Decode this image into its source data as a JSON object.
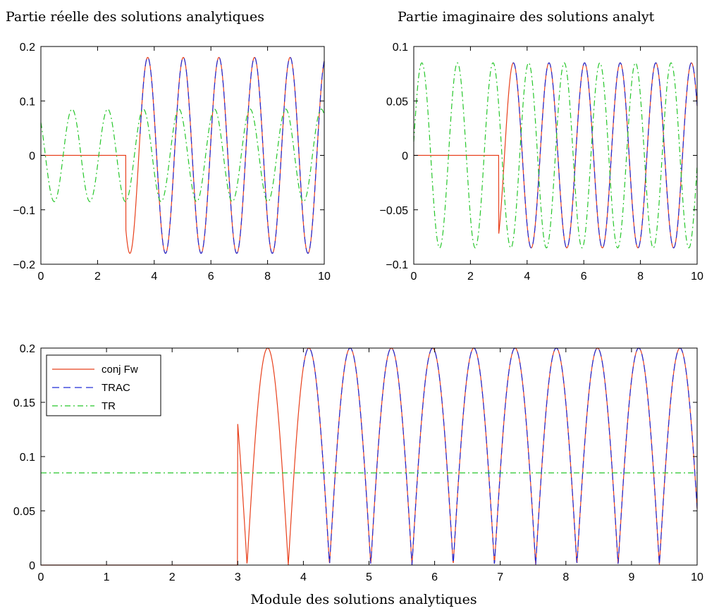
{
  "chart_data": [
    {
      "type": "line",
      "title": "Partie réelle des solutions analytiques",
      "xlabel": "",
      "ylabel": "",
      "xlim": [
        0,
        10
      ],
      "ylim": [
        -0.2,
        0.2
      ],
      "xticks": [
        "0",
        "2",
        "4",
        "6",
        "8",
        "10"
      ],
      "yticks": [
        "−0.2",
        "−0.1",
        "0",
        "0.1",
        "0.2"
      ],
      "grid": false,
      "series": [
        {
          "name": "conj Fw",
          "style": "solid",
          "color": "#e8401c",
          "shape": "zero until x=3, then sinusoid amplitude 0.18 period 1.257 phase pi/2",
          "x": [
            0,
            3,
            3.3,
            3.6,
            3.93,
            4.24,
            4.56,
            4.87,
            5.19,
            5.5,
            5.81,
            6.13,
            6.44,
            6.76,
            7.07,
            7.38,
            7.7,
            8.01,
            8.33,
            8.64,
            8.95,
            9.27,
            9.58,
            9.9,
            10
          ],
          "y": [
            0,
            0,
            -0.18,
            0,
            0.18,
            0,
            -0.18,
            0,
            0.18,
            0,
            -0.18,
            0,
            0.18,
            0,
            -0.18,
            0,
            0.18,
            0,
            -0.18,
            0,
            0.18,
            0,
            -0.18,
            0,
            0.08
          ]
        },
        {
          "name": "TRAC",
          "style": "dashed",
          "color": "#1f2bd6",
          "shape": "same as conj Fw for x >= 3.5",
          "x": [
            3.93,
            4.56,
            5.19,
            5.81,
            6.44,
            7.07,
            7.7,
            8.33,
            8.95,
            9.58
          ],
          "y": [
            0.18,
            -0.18,
            0.18,
            -0.18,
            0.18,
            -0.18,
            0.18,
            -0.18,
            0.18,
            -0.18
          ]
        },
        {
          "name": "TR",
          "style": "dashdot",
          "color": "#26c62a",
          "shape": "sinusoid amplitude 0.085 period 1.257 over whole range",
          "x": [
            0,
            0.47,
            1.1,
            1.73,
            2.36,
            2.98,
            3.61,
            4.24,
            4.87,
            5.5,
            6.13,
            6.75,
            7.38,
            8.01,
            8.64,
            9.27,
            9.9
          ],
          "y": [
            0.06,
            -0.085,
            0.085,
            -0.085,
            0.085,
            -0.085,
            0.085,
            -0.085,
            0.085,
            -0.085,
            0.085,
            -0.085,
            0.085,
            -0.085,
            0.085,
            -0.085,
            0.085
          ]
        }
      ]
    },
    {
      "type": "line",
      "title": "Partie imaginaire des solutions analyt",
      "xlabel": "",
      "ylabel": "",
      "xlim": [
        0,
        10
      ],
      "ylim": [
        -0.1,
        0.1
      ],
      "xticks": [
        "0",
        "2",
        "4",
        "6",
        "8",
        "10"
      ],
      "yticks": [
        "−0.1",
        "−0.05",
        "0",
        "0.05",
        "0.1"
      ],
      "grid": false,
      "series": [
        {
          "name": "conj Fw",
          "style": "solid",
          "color": "#e8401c",
          "shape": "zero until x=3, then sinusoid amplitude 0.085 period 1.257",
          "x": [
            0,
            3,
            3.31,
            3.93,
            4.56,
            5.19,
            5.81,
            6.44,
            7.07,
            7.7,
            8.33,
            8.95,
            9.58,
            10
          ],
          "y": [
            0,
            0,
            -0.085,
            0.085,
            -0.085,
            0.085,
            -0.085,
            0.085,
            -0.085,
            0.085,
            -0.085,
            0.085,
            -0.085,
            0.035
          ]
        },
        {
          "name": "TRAC",
          "style": "dashed",
          "color": "#1f2bd6",
          "shape": "same as conj Fw for x >= 3.5",
          "x": [
            3.93,
            4.56,
            5.19,
            5.81,
            6.44,
            7.07,
            7.7,
            8.33,
            8.95,
            9.58
          ],
          "y": [
            0.085,
            -0.085,
            0.085,
            -0.085,
            0.085,
            -0.085,
            0.085,
            -0.085,
            0.085,
            -0.085
          ]
        },
        {
          "name": "TR",
          "style": "dashdot",
          "color": "#26c62a",
          "shape": "sinusoid amplitude 0.085 period 1.257 over whole range",
          "x": [
            0.16,
            0.79,
            1.41,
            2.04,
            2.67,
            3.3,
            3.93,
            4.56,
            5.19,
            5.81,
            6.44,
            7.07,
            7.7,
            8.33,
            8.95,
            9.58
          ],
          "y": [
            0.085,
            -0.085,
            0.085,
            -0.085,
            0.085,
            -0.085,
            0.085,
            -0.085,
            0.085,
            -0.085,
            0.085,
            -0.085,
            0.085,
            -0.085,
            0.085,
            -0.085
          ]
        }
      ]
    },
    {
      "type": "line",
      "title": "",
      "xlabel": "Module des solutions analytiques",
      "ylabel": "",
      "xlim": [
        0,
        10
      ],
      "ylim": [
        0,
        0.2
      ],
      "xticks": [
        "0",
        "1",
        "2",
        "3",
        "4",
        "5",
        "6",
        "7",
        "8",
        "9",
        "10"
      ],
      "yticks": [
        "0",
        "0.05",
        "0.1",
        "0.15",
        "0.2"
      ],
      "grid": false,
      "legend_position": "top-left",
      "legend": [
        "conj Fw",
        "TRAC",
        "TR"
      ],
      "series": [
        {
          "name": "conj Fw",
          "style": "solid",
          "color": "#e8401c",
          "shape": "zero until x=3, then |sin| amplitude 0.2 period 0.628",
          "x": [
            0,
            3,
            3.31,
            3.63,
            3.93,
            4.24,
            4.56,
            4.87,
            5.19,
            5.5,
            5.81,
            6.13,
            6.44,
            6.75,
            7.07,
            7.38,
            7.7,
            8.01,
            8.33,
            8.64,
            8.95,
            9.27,
            9.58,
            9.9,
            10
          ],
          "y": [
            0,
            0,
            0.2,
            0,
            0.2,
            0,
            0.2,
            0,
            0.2,
            0,
            0.2,
            0,
            0.2,
            0,
            0.2,
            0,
            0.2,
            0,
            0.2,
            0,
            0.2,
            0,
            0.2,
            0,
            0.085
          ]
        },
        {
          "name": "TRAC",
          "style": "dashed",
          "color": "#1f2bd6",
          "shape": "same as conj Fw for x >= 4",
          "x": [
            4.56,
            5.19,
            5.81,
            6.44,
            7.07,
            7.7,
            8.33,
            8.95,
            9.58
          ],
          "y": [
            0.2,
            0.2,
            0.2,
            0.2,
            0.2,
            0.2,
            0.2,
            0.2,
            0.2
          ]
        },
        {
          "name": "TR",
          "style": "dashdot",
          "color": "#26c62a",
          "shape": "constant",
          "x": [
            0,
            10
          ],
          "y": [
            0.085,
            0.085
          ]
        }
      ]
    }
  ]
}
